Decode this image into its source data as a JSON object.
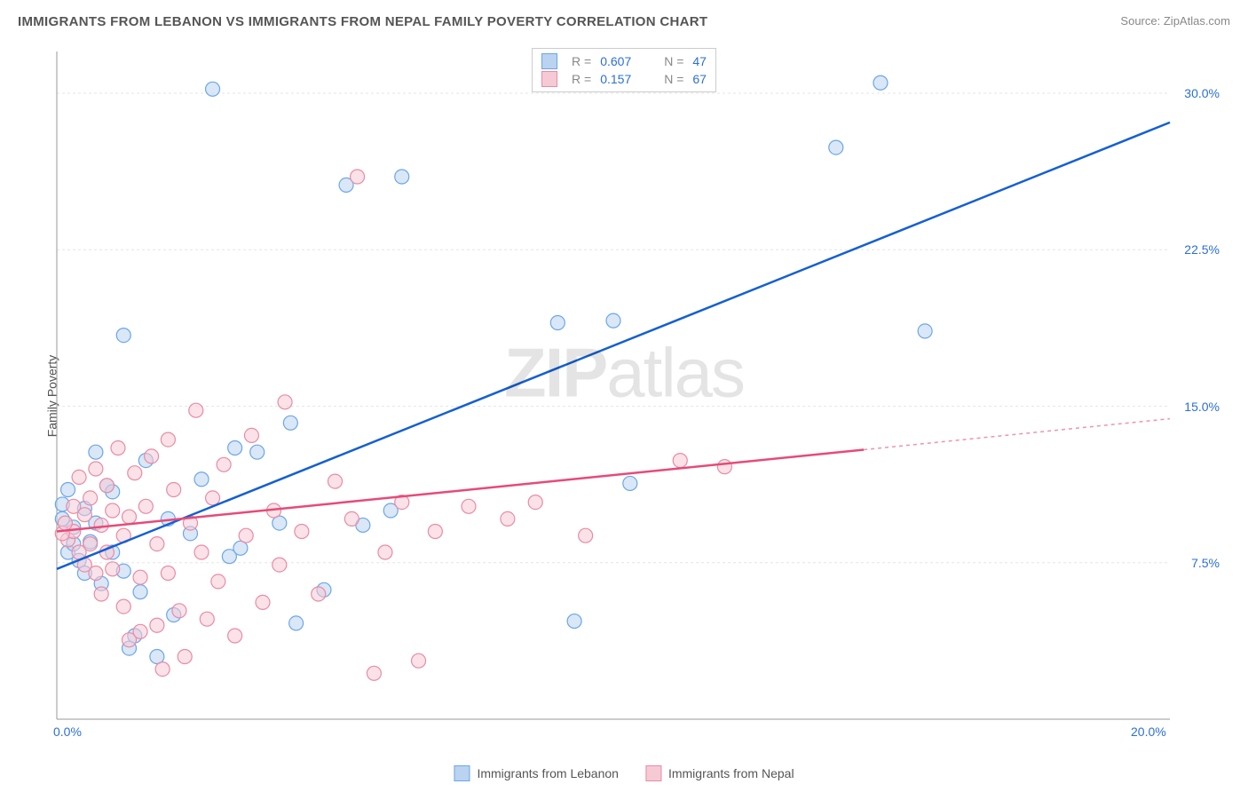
{
  "title": "IMMIGRANTS FROM LEBANON VS IMMIGRANTS FROM NEPAL FAMILY POVERTY CORRELATION CHART",
  "source_label": "Source:",
  "source_value": "ZipAtlas.com",
  "ylabel": "Family Poverty",
  "watermark": {
    "bold": "ZIP",
    "rest": "atlas"
  },
  "chart": {
    "type": "scatter",
    "background_color": "#ffffff",
    "grid_color": "#e6e6e6",
    "axis_color": "#999999",
    "label_fontsize": 14,
    "title_fontsize": 15,
    "xlim": [
      0,
      20
    ],
    "ylim": [
      0,
      32
    ],
    "yticks": [
      7.5,
      15.0,
      22.5,
      30.0
    ],
    "ytick_labels": [
      "7.5%",
      "15.0%",
      "22.5%",
      "30.0%"
    ],
    "xticks": [
      0,
      20
    ],
    "xtick_labels": [
      "0.0%",
      "20.0%"
    ],
    "series": [
      {
        "name": "Immigrants from Lebanon",
        "color_fill": "#b9d3f0",
        "color_stroke": "#6ca6e8",
        "line_color": "#1560d0",
        "r": 0.607,
        "n": 47,
        "marker_radius": 8,
        "fill_opacity": 0.55,
        "regression": {
          "x1": 0,
          "y1": 7.2,
          "x2": 20,
          "y2": 28.6,
          "solid_until_x": 20
        },
        "points": [
          [
            0.2,
            8.0
          ],
          [
            0.3,
            9.2
          ],
          [
            0.3,
            8.4
          ],
          [
            0.4,
            7.6
          ],
          [
            0.5,
            10.1
          ],
          [
            0.5,
            7.0
          ],
          [
            0.6,
            8.5
          ],
          [
            0.7,
            12.8
          ],
          [
            0.7,
            9.4
          ],
          [
            0.8,
            6.5
          ],
          [
            0.9,
            11.2
          ],
          [
            1.0,
            8.0
          ],
          [
            1.0,
            10.9
          ],
          [
            1.2,
            18.4
          ],
          [
            1.2,
            7.1
          ],
          [
            1.3,
            3.4
          ],
          [
            1.4,
            4.0
          ],
          [
            1.5,
            6.1
          ],
          [
            1.6,
            12.4
          ],
          [
            1.8,
            3.0
          ],
          [
            2.0,
            9.6
          ],
          [
            2.1,
            5.0
          ],
          [
            2.4,
            8.9
          ],
          [
            2.6,
            11.5
          ],
          [
            2.8,
            30.2
          ],
          [
            3.1,
            7.8
          ],
          [
            3.2,
            13.0
          ],
          [
            3.3,
            8.2
          ],
          [
            3.6,
            12.8
          ],
          [
            4.0,
            9.4
          ],
          [
            4.2,
            14.2
          ],
          [
            4.3,
            4.6
          ],
          [
            4.8,
            6.2
          ],
          [
            5.2,
            25.6
          ],
          [
            5.5,
            9.3
          ],
          [
            6.0,
            10.0
          ],
          [
            6.2,
            26.0
          ],
          [
            9.0,
            19.0
          ],
          [
            9.3,
            4.7
          ],
          [
            10.0,
            19.1
          ],
          [
            10.3,
            11.3
          ],
          [
            14.0,
            27.4
          ],
          [
            14.8,
            30.5
          ],
          [
            15.6,
            18.6
          ],
          [
            0.1,
            9.6
          ],
          [
            0.1,
            10.3
          ],
          [
            0.2,
            11.0
          ]
        ]
      },
      {
        "name": "Immigrants from Nepal",
        "color_fill": "#f6cad5",
        "color_stroke": "#e98ba5",
        "line_color": "#e74a78",
        "r": 0.157,
        "n": 67,
        "marker_radius": 8,
        "fill_opacity": 0.55,
        "regression": {
          "x1": 0,
          "y1": 9.0,
          "x2": 20,
          "y2": 14.4,
          "solid_until_x": 14.5
        },
        "points": [
          [
            0.2,
            8.6
          ],
          [
            0.3,
            9.0
          ],
          [
            0.3,
            10.2
          ],
          [
            0.4,
            8.0
          ],
          [
            0.4,
            11.6
          ],
          [
            0.5,
            7.4
          ],
          [
            0.5,
            9.8
          ],
          [
            0.6,
            8.4
          ],
          [
            0.6,
            10.6
          ],
          [
            0.7,
            7.0
          ],
          [
            0.7,
            12.0
          ],
          [
            0.8,
            6.0
          ],
          [
            0.8,
            9.3
          ],
          [
            0.9,
            8.0
          ],
          [
            0.9,
            11.2
          ],
          [
            1.0,
            7.2
          ],
          [
            1.0,
            10.0
          ],
          [
            1.1,
            13.0
          ],
          [
            1.2,
            5.4
          ],
          [
            1.2,
            8.8
          ],
          [
            1.3,
            3.8
          ],
          [
            1.3,
            9.7
          ],
          [
            1.4,
            11.8
          ],
          [
            1.5,
            6.8
          ],
          [
            1.5,
            4.2
          ],
          [
            1.6,
            10.2
          ],
          [
            1.7,
            12.6
          ],
          [
            1.8,
            4.5
          ],
          [
            1.8,
            8.4
          ],
          [
            1.9,
            2.4
          ],
          [
            2.0,
            7.0
          ],
          [
            2.0,
            13.4
          ],
          [
            2.1,
            11.0
          ],
          [
            2.2,
            5.2
          ],
          [
            2.3,
            3.0
          ],
          [
            2.4,
            9.4
          ],
          [
            2.5,
            14.8
          ],
          [
            2.6,
            8.0
          ],
          [
            2.7,
            4.8
          ],
          [
            2.8,
            10.6
          ],
          [
            2.9,
            6.6
          ],
          [
            3.0,
            12.2
          ],
          [
            3.2,
            4.0
          ],
          [
            3.4,
            8.8
          ],
          [
            3.5,
            13.6
          ],
          [
            3.7,
            5.6
          ],
          [
            3.9,
            10.0
          ],
          [
            4.0,
            7.4
          ],
          [
            4.1,
            15.2
          ],
          [
            4.4,
            9.0
          ],
          [
            4.7,
            6.0
          ],
          [
            5.0,
            11.4
          ],
          [
            5.3,
            9.6
          ],
          [
            5.4,
            26.0
          ],
          [
            5.7,
            2.2
          ],
          [
            5.9,
            8.0
          ],
          [
            6.2,
            10.4
          ],
          [
            6.5,
            2.8
          ],
          [
            6.8,
            9.0
          ],
          [
            7.4,
            10.2
          ],
          [
            8.1,
            9.6
          ],
          [
            8.6,
            10.4
          ],
          [
            9.5,
            8.8
          ],
          [
            11.2,
            12.4
          ],
          [
            12.0,
            12.1
          ],
          [
            0.1,
            8.9
          ],
          [
            0.15,
            9.4
          ]
        ]
      }
    ]
  },
  "legend": {
    "r_label": "R =",
    "n_label": "N ="
  },
  "bottom_legend": [
    "Immigrants from Lebanon",
    "Immigrants from Nepal"
  ]
}
